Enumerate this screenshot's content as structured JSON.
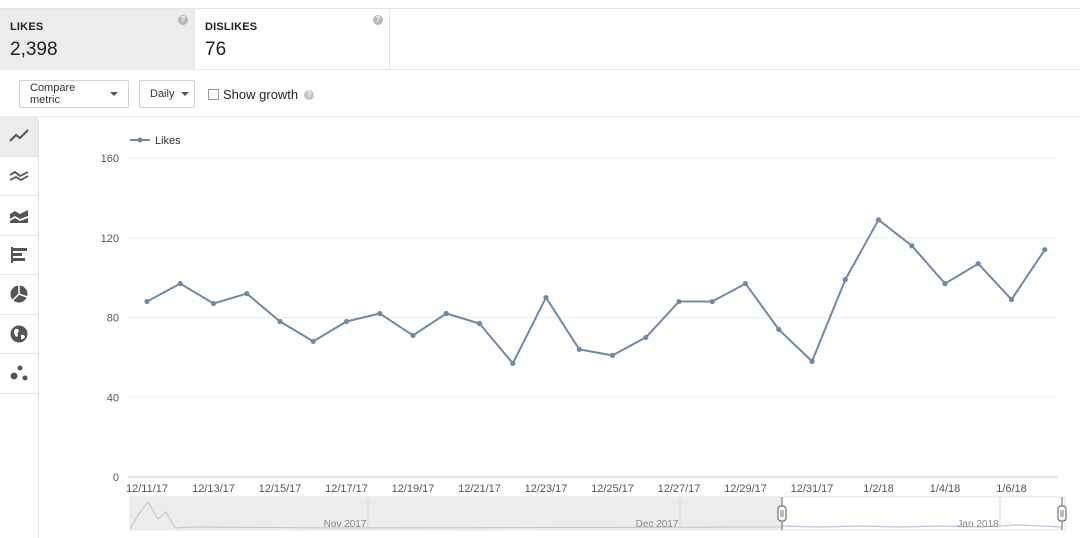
{
  "metrics": [
    {
      "label": "LIKES",
      "value": "2,398",
      "selected": true
    },
    {
      "label": "DISLIKES",
      "value": "76",
      "selected": false
    }
  ],
  "controls": {
    "compare_label": "Compare metric",
    "interval_label": "Daily",
    "show_growth_label": "Show growth",
    "show_growth_checked": false,
    "help_glyph": "?"
  },
  "toolbar": {
    "active": "line-chart-icon",
    "items": [
      "line-chart-icon",
      "multi-line-chart-icon",
      "stacked-area-chart-icon",
      "bar-chart-icon",
      "pie-chart-icon",
      "globe-map-icon",
      "bubble-chart-icon"
    ]
  },
  "colors": {
    "series": "#7189a6",
    "navigator": "#b9c6d6",
    "selected_bg": "#ececec"
  },
  "chart_data": {
    "type": "line",
    "title": "",
    "xlabel": "",
    "ylabel": "",
    "legend_position": "top-left",
    "grid": true,
    "ylim": [
      0,
      160
    ],
    "yticks": [
      0,
      40,
      80,
      120,
      160
    ],
    "x": [
      "12/11/17",
      "12/12/17",
      "12/13/17",
      "12/14/17",
      "12/15/17",
      "12/16/17",
      "12/17/17",
      "12/18/17",
      "12/19/17",
      "12/20/17",
      "12/21/17",
      "12/22/17",
      "12/23/17",
      "12/24/17",
      "12/25/17",
      "12/26/17",
      "12/27/17",
      "12/28/17",
      "12/29/17",
      "12/30/17",
      "12/31/17",
      "1/1/18",
      "1/2/18",
      "1/3/18",
      "1/4/18",
      "1/5/18",
      "1/6/18",
      "1/7/18"
    ],
    "xtick_labels": [
      "12/11/17",
      "12/13/17",
      "12/15/17",
      "12/17/17",
      "12/19/17",
      "12/21/17",
      "12/23/17",
      "12/25/17",
      "12/27/17",
      "12/29/17",
      "12/31/17",
      "1/2/18",
      "1/4/18",
      "1/6/18"
    ],
    "series": [
      {
        "name": "Likes",
        "values": [
          88,
          97,
          87,
          92,
          78,
          68,
          78,
          82,
          71,
          82,
          77,
          57,
          90,
          64,
          61,
          70,
          88,
          88,
          97,
          74,
          58,
          99,
          129,
          116,
          97,
          107,
          89,
          114
        ]
      }
    ],
    "navigator": {
      "labels": [
        "Nov 2017",
        "Dec 2017",
        "Jan 2018"
      ],
      "selected_range": [
        "12/11/17",
        "1/7/18"
      ]
    }
  }
}
